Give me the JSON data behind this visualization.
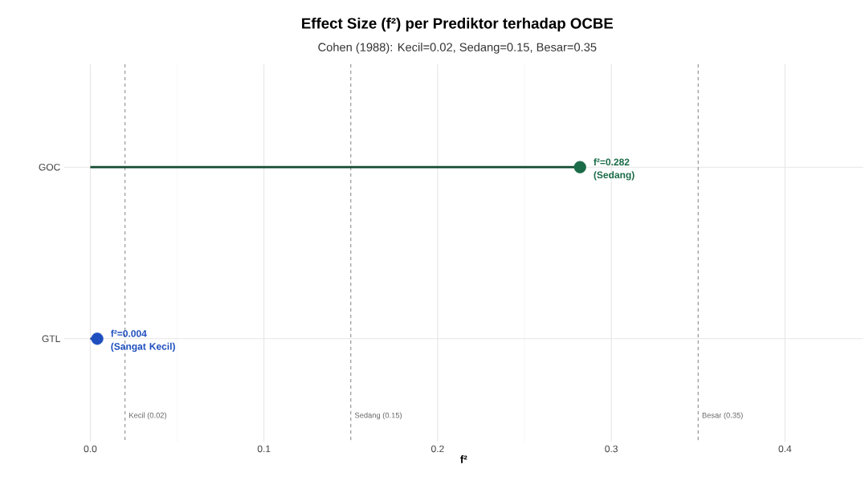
{
  "chart_data": {
    "type": "lollipop",
    "orientation": "horizontal",
    "title": "Effect Size (f²) per Prediktor terhadap OCBE",
    "subtitle": "Cohen (1988): Kecil=0.02, Sedang=0.15, Besar=0.35",
    "xlabel": "f²",
    "categories": [
      "GOC",
      "GTL"
    ],
    "values": [
      0.282,
      0.004
    ],
    "colors": [
      "#1a6b47",
      "#1f4fbf"
    ],
    "value_labels": [
      "f²=0.282 (Sedang)",
      "f²=0.004 (Sangat Kecil)"
    ],
    "xlim": [
      -0.015,
      0.445
    ],
    "xticks": [
      {
        "value": 0,
        "label": "0.0"
      },
      0.1,
      0.2,
      0.3,
      0.4
    ],
    "ref_lines": [
      {
        "axis": "x",
        "value": 0.02,
        "label": "Kecil (0.02)",
        "color": "#666666",
        "line_style": "dashed"
      },
      {
        "axis": "x",
        "value": 0.15,
        "label": "Sedang (0.15)",
        "color": "#666666",
        "line_style": "dashed"
      },
      {
        "axis": "x",
        "value": 0.35,
        "label": "Besar (0.35)",
        "color": "#666666",
        "line_style": "dashed"
      }
    ],
    "grid": true,
    "marker": "circle"
  }
}
